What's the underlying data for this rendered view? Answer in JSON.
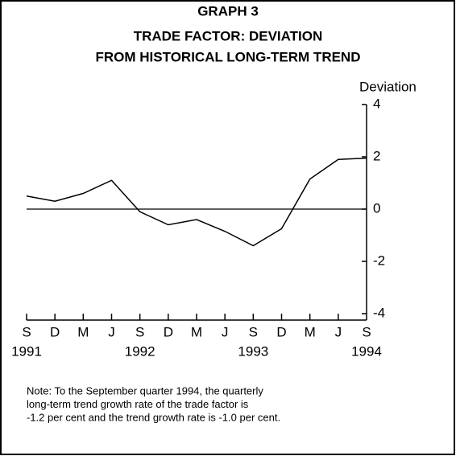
{
  "chart_data": {
    "type": "line",
    "title": [
      "GRAPH 3",
      "TRADE FACTOR: DEVIATION",
      "FROM HISTORICAL LONG-TERM TREND"
    ],
    "y_axis_label": "Deviation",
    "categories": [
      "S",
      "D",
      "M",
      "J",
      "S",
      "D",
      "M",
      "J",
      "S",
      "D",
      "M",
      "J",
      "S"
    ],
    "years": [
      "1991",
      null,
      null,
      null,
      "1992",
      null,
      null,
      null,
      "1993",
      null,
      null,
      null,
      "1994"
    ],
    "values": [
      0.5,
      0.3,
      0.6,
      1.1,
      -0.1,
      -0.6,
      -0.4,
      -0.85,
      -1.4,
      -0.75,
      1.15,
      1.9,
      1.95
    ],
    "color": "#000000",
    "ylim": [
      -4,
      4
    ],
    "yticks": [
      4,
      2,
      0,
      -2,
      -4
    ],
    "reference_line": 0,
    "note": [
      "Note: To the September quarter 1994, the quarterly",
      "long-term trend growth rate of the trade factor is",
      "-1.2 per cent and the trend growth rate is -1.0 per cent."
    ]
  }
}
